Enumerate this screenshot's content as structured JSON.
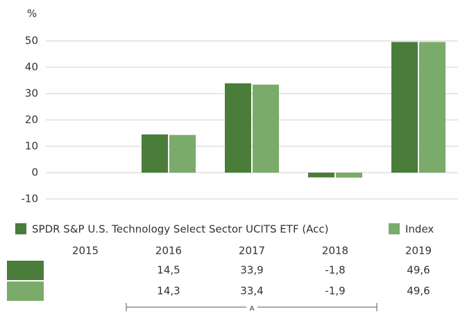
{
  "chart_data": {
    "type": "bar",
    "y_axis_label": "%",
    "categories": [
      "2015",
      "2016",
      "2017",
      "2018",
      "2019"
    ],
    "series": [
      {
        "name": "SPDR S&P U.S. Technology Select Sector UCITS ETF (Acc)",
        "color": "#4a7c3a",
        "values": [
          null,
          14.5,
          33.9,
          -1.8,
          49.6
        ],
        "value_labels": [
          null,
          "14,5",
          "33,9",
          "-1,8",
          "49,6"
        ]
      },
      {
        "name": "Index",
        "color": "#7aab6a",
        "values": [
          null,
          14.3,
          33.4,
          -1.9,
          49.6
        ],
        "value_labels": [
          null,
          "14,3",
          "33,4",
          "-1,9",
          "49,6"
        ]
      }
    ],
    "ylim": [
      -10,
      50
    ],
    "yticks": [
      -10,
      0,
      10,
      20,
      30,
      40,
      50
    ],
    "grid": true,
    "annotation": "A"
  }
}
